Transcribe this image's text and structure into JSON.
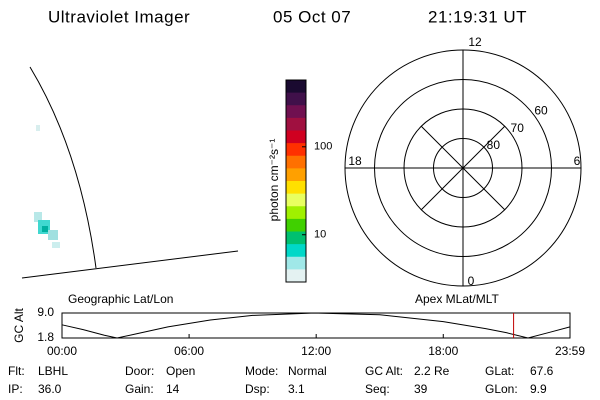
{
  "header": {
    "title": "Ultraviolet Imager",
    "date": "05 Oct 07",
    "time": "21:19:31 UT"
  },
  "colorbar": {
    "label": "photon cm⁻²s⁻¹",
    "lim": [
      2.9,
      575
    ],
    "ticks": [
      10,
      100
    ],
    "log": true,
    "colors": [
      "#1a0a30",
      "#40104a",
      "#701050",
      "#a01040",
      "#d00020",
      "#ff3000",
      "#ff7000",
      "#ffa000",
      "#ffe000",
      "#e8ff60",
      "#a0f000",
      "#40d000",
      "#00c070",
      "#00d8c8",
      "#a0e8e8",
      "#e4f2f2"
    ]
  },
  "polar": {
    "mlt_labels": [
      "12",
      "18",
      "6",
      "0"
    ],
    "rings": [
      80,
      70,
      60
    ],
    "lat_lim": [
      90,
      50
    ]
  },
  "chart_data": {
    "type": "line",
    "ylabel": "GC Alt",
    "annotations": [
      "Geographic Lat/Lon",
      "Apex MLat/MLT"
    ],
    "x": [
      0,
      1,
      2,
      2.6,
      3.5,
      5,
      7,
      9,
      11.9,
      15,
      18,
      20,
      21,
      22,
      23,
      23.983
    ],
    "values": [
      5.6,
      4.2,
      2.6,
      1.8,
      3.0,
      5.0,
      7.0,
      8.3,
      9.0,
      8.5,
      6.5,
      4.5,
      3.3,
      1.8,
      3.4,
      5.0
    ],
    "color": "#000000",
    "xlim": [
      0,
      23.983
    ],
    "xticks": [
      {
        "value": 0,
        "label": "00:00"
      },
      {
        "value": 6,
        "label": "06:00"
      },
      {
        "value": 12,
        "label": "12:00"
      },
      {
        "value": 18,
        "label": "18:00"
      },
      {
        "value": 23.983,
        "label": "23:59"
      }
    ],
    "ylim": [
      1.8,
      9.0
    ],
    "yticks": [
      {
        "value": 9.0,
        "label": "9.0"
      },
      1.8
    ],
    "marker": {
      "x": 21.32,
      "color": "#c00000"
    }
  },
  "footer": {
    "rows": [
      [
        {
          "label": "Flt:",
          "value": "LBHL"
        },
        {
          "label": "Door:",
          "value": "Open"
        },
        {
          "label": "Mode:",
          "value": "Normal"
        },
        {
          "label": "GC Alt:",
          "value": "2.2 Re"
        },
        {
          "label": "GLat:",
          "value": "67.6"
        }
      ],
      [
        {
          "label": "IP:",
          "value": "36.0"
        },
        {
          "label": "Gain:",
          "value": "14"
        },
        {
          "label": "Dsp:",
          "value": "3.1"
        },
        {
          "label": "Seq:",
          "value": "39"
        },
        {
          "label": "GLon:",
          "value": "9.9"
        }
      ]
    ]
  }
}
